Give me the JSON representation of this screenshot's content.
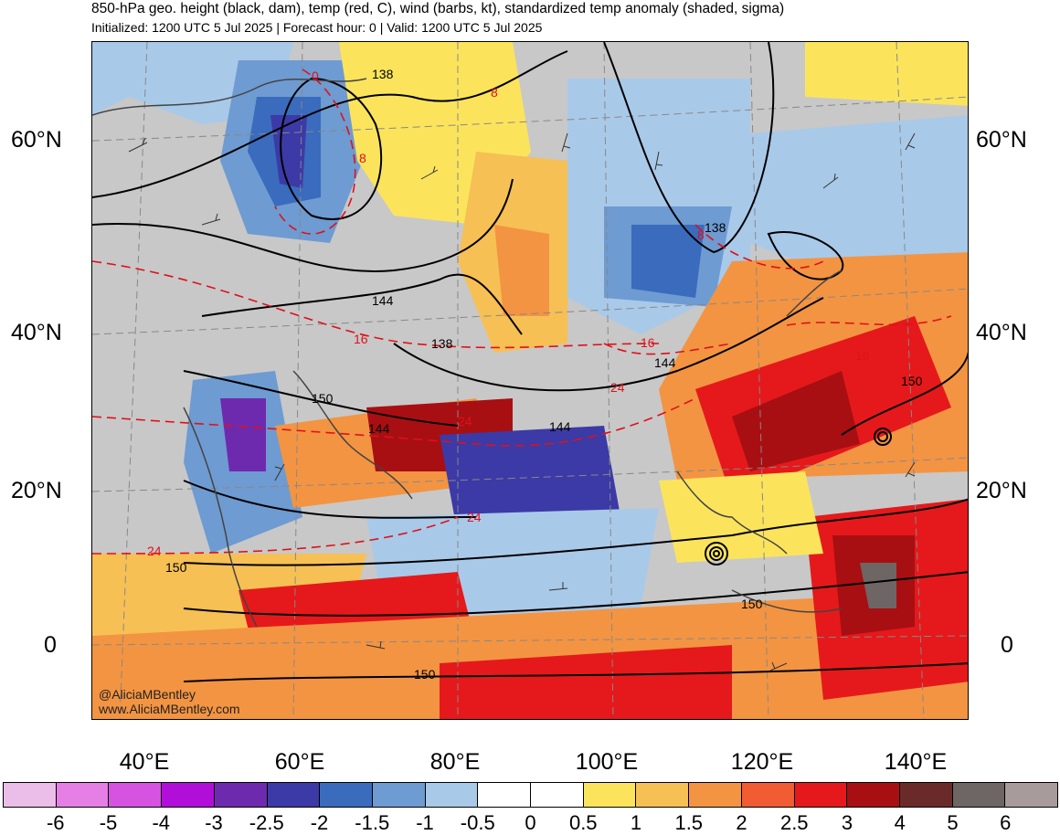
{
  "header": {
    "title": "850-hPa geo. height (black, dam), temp (red, C), wind (barbs, kt), standardized temp anomaly (shaded, sigma)",
    "subtitle": "Initialized: 1200 UTC 5 Jul 2025 | Forecast hour: 0 | Valid: 1200 UTC 5 Jul 2025"
  },
  "axes": {
    "lat_labels": [
      "60°N",
      "40°N",
      "20°N",
      "0"
    ],
    "lon_labels": [
      "40°E",
      "60°E",
      "80°E",
      "100°E",
      "120°E",
      "140°E"
    ]
  },
  "height_contour_labels": [
    "138",
    "138",
    "138",
    "144",
    "144",
    "144",
    "144",
    "150",
    "150",
    "150",
    "150",
    "150"
  ],
  "temp_contour_labels": [
    "0",
    "8",
    "8",
    "8",
    "16",
    "16",
    "16",
    "24",
    "24",
    "24",
    "24"
  ],
  "watermark": {
    "line1": "@AliciaMBentley",
    "line2": "www.AliciaMBentley.com"
  },
  "colorbar": {
    "colors": [
      "#ebbde9",
      "#e57fe6",
      "#d652e0",
      "#b10fd9",
      "#6e2aae",
      "#3c3aa6",
      "#3a6bbd",
      "#6e9bd1",
      "#a9c9e9",
      "#ffffff",
      "#ffffff",
      "#fbe45c",
      "#f6c054",
      "#f39442",
      "#f15c32",
      "#e5191b",
      "#a80f12",
      "#6b2a2a",
      "#6e6565",
      "#a89b9b"
    ],
    "tick_labels": [
      "-6",
      "-5",
      "-4",
      "-3",
      "-2.5",
      "-2",
      "-1.5",
      "-1",
      "-0.5",
      "0",
      "0.5",
      "1",
      "1.5",
      "2",
      "2.5",
      "3",
      "4",
      "5",
      "6"
    ]
  }
}
